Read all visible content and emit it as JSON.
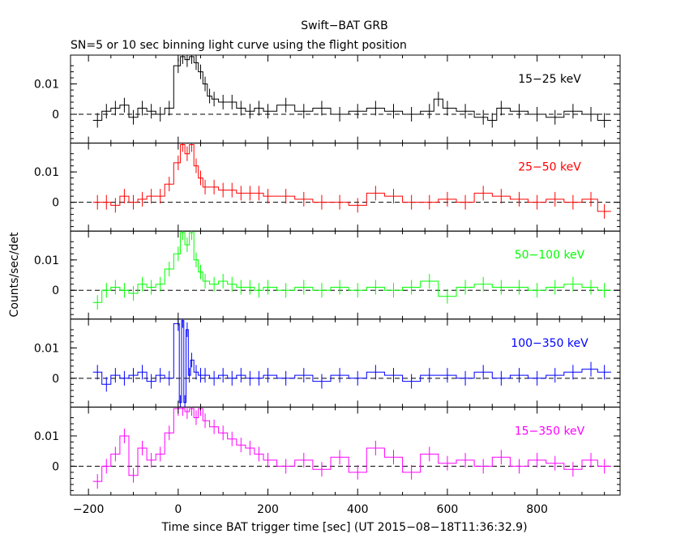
{
  "chart_data": {
    "type": "line",
    "title": "Swift−BAT GRB",
    "subtitle": "SN=5 or 10 sec binning light curve using the flight position",
    "xlabel": "Time since BAT trigger time [sec] (UT 2015−08−18T11:36:32.9)",
    "ylabel": "Counts/sec/det",
    "xlim": [
      -240,
      985
    ],
    "ylim": [
      -0.0095,
      0.0195
    ],
    "x_ticks": [
      -200,
      0,
      200,
      400,
      600,
      800
    ],
    "x_tick_labels": [
      "−200",
      "0",
      "200",
      "400",
      "600",
      "800"
    ],
    "y_ticks": [
      0,
      0.01
    ],
    "y_tick_labels": [
      "0",
      "0.01"
    ],
    "grid": false,
    "zero_line": "dashed",
    "panels": [
      {
        "label": "15−25 keV",
        "color": "#000000",
        "x": [
          -180,
          -160,
          -140,
          -120,
          -100,
          -80,
          -60,
          -40,
          -20,
          0,
          10,
          20,
          30,
          40,
          50,
          60,
          70,
          80,
          100,
          120,
          140,
          160,
          180,
          200,
          240,
          280,
          320,
          360,
          400,
          440,
          480,
          520,
          560,
          580,
          600,
          640,
          680,
          700,
          720,
          760,
          800,
          840,
          880,
          920,
          950
        ],
        "values": [
          -0.002,
          0.001,
          0.002,
          0.003,
          -0.001,
          0.002,
          0.001,
          0.0,
          0.002,
          0.016,
          0.019,
          0.018,
          0.019,
          0.017,
          0.014,
          0.01,
          0.006,
          0.005,
          0.004,
          0.004,
          0.002,
          0.001,
          0.002,
          0.001,
          0.003,
          0.001,
          0.002,
          0.0,
          0.001,
          0.002,
          0.001,
          0.0,
          0.001,
          0.005,
          0.002,
          0.001,
          -0.001,
          -0.002,
          0.002,
          0.001,
          0.0,
          -0.001,
          0.001,
          0.0,
          -0.002
        ]
      },
      {
        "label": "25−50 keV",
        "color": "#ff0000",
        "x": [
          -180,
          -160,
          -140,
          -120,
          -100,
          -80,
          -60,
          -40,
          -20,
          0,
          10,
          20,
          30,
          40,
          50,
          60,
          80,
          100,
          120,
          140,
          160,
          180,
          200,
          240,
          280,
          320,
          360,
          400,
          440,
          480,
          520,
          560,
          600,
          640,
          680,
          720,
          760,
          800,
          840,
          880,
          920,
          950
        ],
        "values": [
          0.0,
          0.0,
          -0.001,
          0.002,
          0.0,
          0.001,
          0.002,
          0.002,
          0.006,
          0.013,
          0.019,
          0.016,
          0.019,
          0.012,
          0.008,
          0.005,
          0.005,
          0.004,
          0.004,
          0.003,
          0.003,
          0.003,
          0.002,
          0.002,
          0.001,
          0.0,
          0.0,
          -0.001,
          0.003,
          0.002,
          0.0,
          0.0,
          0.001,
          0.0,
          0.003,
          0.002,
          0.001,
          0.0,
          0.001,
          0.0,
          0.001,
          -0.003
        ]
      },
      {
        "label": "50−100 keV",
        "color": "#00ff00",
        "x": [
          -180,
          -160,
          -140,
          -120,
          -100,
          -80,
          -60,
          -40,
          -20,
          0,
          10,
          20,
          30,
          40,
          50,
          60,
          80,
          100,
          120,
          140,
          160,
          180,
          200,
          240,
          280,
          320,
          360,
          400,
          440,
          480,
          520,
          560,
          600,
          640,
          680,
          720,
          760,
          800,
          840,
          880,
          920,
          950
        ],
        "values": [
          -0.004,
          0.0,
          0.001,
          0.0,
          -0.001,
          0.002,
          0.001,
          0.002,
          0.007,
          0.012,
          0.019,
          0.015,
          0.019,
          0.01,
          0.006,
          0.003,
          0.002,
          0.003,
          0.002,
          0.001,
          0.001,
          0.0,
          0.001,
          0.0,
          0.001,
          0.0,
          0.001,
          0.0,
          0.001,
          0.0,
          0.001,
          0.003,
          -0.002,
          0.001,
          0.002,
          0.001,
          0.001,
          0.0,
          0.001,
          0.002,
          0.001,
          0.0
        ]
      },
      {
        "label": "100−350 keV",
        "color": "#0000ff",
        "x": [
          -180,
          -160,
          -140,
          -120,
          -100,
          -80,
          -60,
          -40,
          -20,
          0,
          5,
          10,
          15,
          20,
          25,
          30,
          40,
          50,
          60,
          80,
          100,
          120,
          140,
          160,
          180,
          200,
          240,
          280,
          320,
          360,
          400,
          440,
          480,
          520,
          560,
          600,
          640,
          680,
          720,
          760,
          800,
          840,
          880,
          920,
          950
        ],
        "values": [
          0.002,
          -0.002,
          0.001,
          0.0,
          0.001,
          0.002,
          -0.001,
          0.001,
          0.0,
          0.018,
          -0.008,
          0.019,
          -0.008,
          0.016,
          0.001,
          0.006,
          0.002,
          0.001,
          0.001,
          0.0,
          0.001,
          0.0,
          0.001,
          0.0,
          0.0,
          0.001,
          0.0,
          0.001,
          -0.001,
          0.001,
          0.0,
          0.002,
          0.001,
          -0.001,
          0.001,
          0.001,
          0.0,
          0.002,
          0.0,
          0.001,
          0.0,
          0.001,
          0.002,
          0.003,
          0.002
        ]
      },
      {
        "label": "15−350 keV",
        "color": "#ff00ff",
        "x": [
          -180,
          -160,
          -140,
          -120,
          -100,
          -80,
          -60,
          -40,
          -20,
          0,
          10,
          20,
          30,
          40,
          50,
          60,
          80,
          100,
          120,
          140,
          160,
          180,
          200,
          240,
          280,
          320,
          360,
          400,
          440,
          480,
          520,
          560,
          600,
          640,
          680,
          720,
          760,
          800,
          840,
          880,
          920,
          950
        ],
        "values": [
          -0.005,
          0.0,
          0.004,
          0.01,
          -0.003,
          0.006,
          0.002,
          0.004,
          0.011,
          0.019,
          0.019,
          0.018,
          0.019,
          0.016,
          0.019,
          0.015,
          0.013,
          0.011,
          0.009,
          0.007,
          0.006,
          0.004,
          0.002,
          0.0,
          0.002,
          -0.001,
          0.003,
          -0.002,
          0.006,
          0.003,
          -0.002,
          0.004,
          0.001,
          0.002,
          0.0,
          0.003,
          0.0,
          0.002,
          0.001,
          -0.001,
          0.002,
          0.0
        ]
      }
    ]
  }
}
